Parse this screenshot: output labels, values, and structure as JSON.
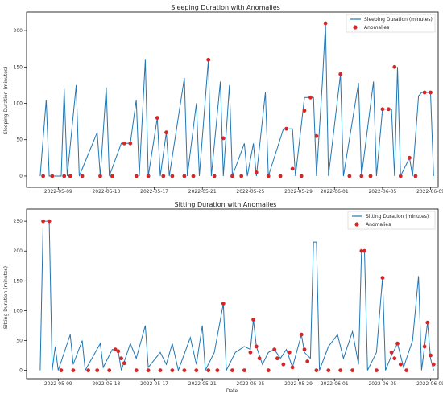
{
  "chart_data": [
    {
      "type": "line",
      "title": "Sleeping Duration with Anomalies",
      "xlabel": "",
      "ylabel": "Sleeping Duration (minutes)",
      "xlim": [
        "2022-05-06T12:00",
        "2022-06-09T12:00"
      ],
      "ylim": [
        -10,
        220
      ],
      "xticks": [
        "2022-05-09",
        "2022-05-13",
        "2022-05-17",
        "2022-05-21",
        "2022-05-25",
        "2022-05-29",
        "2022-06-01",
        "2022-06-05",
        "2022-06-09"
      ],
      "yticks": [
        0,
        50,
        100,
        150,
        200
      ],
      "grid": false,
      "legend_position": "top-right",
      "legend": [
        "Sleeping Duration (minutes)",
        "Anomalies"
      ],
      "colors": {
        "line": "#1f77b4",
        "anomaly": "#d62728"
      },
      "series_line": {
        "name": "Sleeping Duration (minutes)",
        "points": [
          [
            "2022-05-07T12:00",
            0
          ],
          [
            "2022-05-08T00:00",
            105
          ],
          [
            "2022-05-08T06:00",
            0
          ],
          [
            "2022-05-09T06:00",
            0
          ],
          [
            "2022-05-09T12:00",
            120
          ],
          [
            "2022-05-09T18:00",
            0
          ],
          [
            "2022-05-10T12:00",
            125
          ],
          [
            "2022-05-10T18:00",
            0
          ],
          [
            "2022-05-12T06:00",
            60
          ],
          [
            "2022-05-12T12:00",
            0
          ],
          [
            "2022-05-13T00:00",
            122
          ],
          [
            "2022-05-13T06:00",
            0
          ],
          [
            "2022-05-14T06:00",
            45
          ],
          [
            "2022-05-15T00:00",
            45
          ],
          [
            "2022-05-15T12:00",
            105
          ],
          [
            "2022-05-15T18:00",
            0
          ],
          [
            "2022-05-16T06:00",
            160
          ],
          [
            "2022-05-16T12:00",
            0
          ],
          [
            "2022-05-17T06:00",
            80
          ],
          [
            "2022-05-17T12:00",
            0
          ],
          [
            "2022-05-18T00:00",
            60
          ],
          [
            "2022-05-18T06:00",
            0
          ],
          [
            "2022-05-19T12:00",
            135
          ],
          [
            "2022-05-19T18:00",
            0
          ],
          [
            "2022-05-20T12:00",
            100
          ],
          [
            "2022-05-20T18:00",
            0
          ],
          [
            "2022-05-21T12:00",
            160
          ],
          [
            "2022-05-21T18:00",
            0
          ],
          [
            "2022-05-22T12:00",
            130
          ],
          [
            "2022-05-22T18:00",
            0
          ],
          [
            "2022-05-23T06:00",
            125
          ],
          [
            "2022-05-23T12:00",
            0
          ],
          [
            "2022-05-24T12:00",
            45
          ],
          [
            "2022-05-24T18:00",
            0
          ],
          [
            "2022-05-25T06:00",
            45
          ],
          [
            "2022-05-25T12:00",
            0
          ],
          [
            "2022-05-26T06:00",
            115
          ],
          [
            "2022-05-26T12:00",
            0
          ],
          [
            "2022-05-27T18:00",
            65
          ],
          [
            "2022-05-28T12:00",
            65
          ],
          [
            "2022-05-28T18:00",
            0
          ],
          [
            "2022-05-29T12:00",
            108
          ],
          [
            "2022-05-30T06:00",
            108
          ],
          [
            "2022-05-30T12:00",
            0
          ],
          [
            "2022-05-31T00:00",
            130
          ],
          [
            "2022-05-31T06:00",
            210
          ],
          [
            "2022-05-31T12:00",
            0
          ],
          [
            "2022-06-01T12:00",
            140
          ],
          [
            "2022-06-01T18:00",
            0
          ],
          [
            "2022-06-03T00:00",
            128
          ],
          [
            "2022-06-03T06:00",
            0
          ],
          [
            "2022-06-04T06:00",
            130
          ],
          [
            "2022-06-04T12:00",
            0
          ],
          [
            "2022-06-05T00:00",
            92
          ],
          [
            "2022-06-05T18:00",
            92
          ],
          [
            "2022-06-06T00:00",
            0
          ],
          [
            "2022-06-06T06:00",
            150
          ],
          [
            "2022-06-06T12:00",
            0
          ],
          [
            "2022-06-07T06:00",
            25
          ],
          [
            "2022-06-07T12:00",
            0
          ],
          [
            "2022-06-08T00:00",
            110
          ],
          [
            "2022-06-08T06:00",
            115
          ],
          [
            "2022-06-09T00:00",
            115
          ],
          [
            "2022-06-09T06:00",
            0
          ]
        ]
      },
      "series_anomalies": {
        "name": "Anomalies",
        "points": [
          [
            "2022-05-07T18:00",
            0
          ],
          [
            "2022-05-08T12:00",
            0
          ],
          [
            "2022-05-09T12:00",
            0
          ],
          [
            "2022-05-10T00:00",
            0
          ],
          [
            "2022-05-11T00:00",
            0
          ],
          [
            "2022-05-12T12:00",
            0
          ],
          [
            "2022-05-13T12:00",
            0
          ],
          [
            "2022-05-14T12:00",
            45
          ],
          [
            "2022-05-15T00:00",
            45
          ],
          [
            "2022-05-15T12:00",
            0
          ],
          [
            "2022-05-16T12:00",
            0
          ],
          [
            "2022-05-17T06:00",
            80
          ],
          [
            "2022-05-17T18:00",
            0
          ],
          [
            "2022-05-18T00:00",
            60
          ],
          [
            "2022-05-18T12:00",
            0
          ],
          [
            "2022-05-19T12:00",
            0
          ],
          [
            "2022-05-20T06:00",
            0
          ],
          [
            "2022-05-21T12:00",
            160
          ],
          [
            "2022-05-22T00:00",
            0
          ],
          [
            "2022-05-22T18:00",
            52
          ],
          [
            "2022-05-23T12:00",
            0
          ],
          [
            "2022-05-24T06:00",
            0
          ],
          [
            "2022-05-25T12:00",
            5
          ],
          [
            "2022-05-26T12:00",
            0
          ],
          [
            "2022-05-27T12:00",
            0
          ],
          [
            "2022-05-28T00:00",
            65
          ],
          [
            "2022-05-28T12:00",
            10
          ],
          [
            "2022-05-29T06:00",
            0
          ],
          [
            "2022-05-29T12:00",
            90
          ],
          [
            "2022-05-30T00:00",
            108
          ],
          [
            "2022-05-30T12:00",
            55
          ],
          [
            "2022-05-31T06:00",
            210
          ],
          [
            "2022-06-01T12:00",
            140
          ],
          [
            "2022-06-02T06:00",
            0
          ],
          [
            "2022-06-03T06:00",
            0
          ],
          [
            "2022-06-04T00:00",
            0
          ],
          [
            "2022-06-05T00:00",
            92
          ],
          [
            "2022-06-05T12:00",
            92
          ],
          [
            "2022-06-06T00:00",
            150
          ],
          [
            "2022-06-06T12:00",
            0
          ],
          [
            "2022-06-07T06:00",
            25
          ],
          [
            "2022-06-07T18:00",
            0
          ],
          [
            "2022-06-08T12:00",
            115
          ],
          [
            "2022-06-09T00:00",
            115
          ]
        ]
      }
    },
    {
      "type": "line",
      "title": "Sitting Duration with Anomalies",
      "xlabel": "Date",
      "ylabel": "Sitting Duration (minutes)",
      "xlim": [
        "2022-05-06T12:00",
        "2022-06-09T12:00"
      ],
      "ylim": [
        -10,
        265
      ],
      "xticks": [
        "2022-05-09",
        "2022-05-13",
        "2022-05-17",
        "2022-05-21",
        "2022-05-25",
        "2022-05-29",
        "2022-06-01",
        "2022-06-05",
        "2022-06-09"
      ],
      "yticks": [
        0,
        50,
        100,
        150,
        200,
        250
      ],
      "grid": false,
      "legend_position": "top-right",
      "legend": [
        "Sitting Duration (minutes)",
        "Anomalies"
      ],
      "colors": {
        "line": "#1f77b4",
        "anomaly": "#d62728"
      },
      "series_line": {
        "name": "Sitting Duration (minutes)",
        "points": [
          [
            "2022-05-07T12:00",
            0
          ],
          [
            "2022-05-07T18:00",
            250
          ],
          [
            "2022-05-08T06:00",
            250
          ],
          [
            "2022-05-08T12:00",
            0
          ],
          [
            "2022-05-08T18:00",
            40
          ],
          [
            "2022-05-09T00:00",
            0
          ],
          [
            "2022-05-10T00:00",
            60
          ],
          [
            "2022-05-10T06:00",
            10
          ],
          [
            "2022-05-11T00:00",
            50
          ],
          [
            "2022-05-11T06:00",
            0
          ],
          [
            "2022-05-12T12:00",
            45
          ],
          [
            "2022-05-12T18:00",
            5
          ],
          [
            "2022-05-13T12:00",
            35
          ],
          [
            "2022-05-14T00:00",
            32
          ],
          [
            "2022-05-14T06:00",
            0
          ],
          [
            "2022-05-15T00:00",
            45
          ],
          [
            "2022-05-15T12:00",
            20
          ],
          [
            "2022-05-16T06:00",
            75
          ],
          [
            "2022-05-16T12:00",
            5
          ],
          [
            "2022-05-17T12:00",
            30
          ],
          [
            "2022-05-18T00:00",
            10
          ],
          [
            "2022-05-18T12:00",
            45
          ],
          [
            "2022-05-19T00:00",
            0
          ],
          [
            "2022-05-20T00:00",
            55
          ],
          [
            "2022-05-20T12:00",
            10
          ],
          [
            "2022-05-21T00:00",
            75
          ],
          [
            "2022-05-21T06:00",
            0
          ],
          [
            "2022-05-22T00:00",
            30
          ],
          [
            "2022-05-22T18:00",
            112
          ],
          [
            "2022-05-23T00:00",
            0
          ],
          [
            "2022-05-23T18:00",
            30
          ],
          [
            "2022-05-24T12:00",
            40
          ],
          [
            "2022-05-25T00:00",
            35
          ],
          [
            "2022-05-25T06:00",
            85
          ],
          [
            "2022-05-25T12:00",
            40
          ],
          [
            "2022-05-26T00:00",
            10
          ],
          [
            "2022-05-26T12:00",
            30
          ],
          [
            "2022-05-27T00:00",
            35
          ],
          [
            "2022-05-27T12:00",
            20
          ],
          [
            "2022-05-28T00:00",
            35
          ],
          [
            "2022-05-28T12:00",
            5
          ],
          [
            "2022-05-29T06:00",
            60
          ],
          [
            "2022-05-29T12:00",
            30
          ],
          [
            "2022-05-30T00:00",
            20
          ],
          [
            "2022-05-30T06:00",
            215
          ],
          [
            "2022-05-30T12:00",
            215
          ],
          [
            "2022-05-30T18:00",
            0
          ],
          [
            "2022-05-31T12:00",
            40
          ],
          [
            "2022-06-01T06:00",
            60
          ],
          [
            "2022-06-01T18:00",
            20
          ],
          [
            "2022-06-02T12:00",
            65
          ],
          [
            "2022-06-03T00:00",
            10
          ],
          [
            "2022-06-03T06:00",
            200
          ],
          [
            "2022-06-03T12:00",
            200
          ],
          [
            "2022-06-03T18:00",
            0
          ],
          [
            "2022-06-04T12:00",
            30
          ],
          [
            "2022-06-05T00:00",
            155
          ],
          [
            "2022-06-05T06:00",
            0
          ],
          [
            "2022-06-05T18:00",
            25
          ],
          [
            "2022-06-06T06:00",
            45
          ],
          [
            "2022-06-06T18:00",
            5
          ],
          [
            "2022-06-07T12:00",
            50
          ],
          [
            "2022-06-08T00:00",
            158
          ],
          [
            "2022-06-08T06:00",
            0
          ],
          [
            "2022-06-08T18:00",
            80
          ],
          [
            "2022-06-09T00:00",
            20
          ],
          [
            "2022-06-09T06:00",
            0
          ]
        ]
      },
      "series_anomalies": {
        "name": "Anomalies",
        "points": [
          [
            "2022-05-07T18:00",
            250
          ],
          [
            "2022-05-08T06:00",
            250
          ],
          [
            "2022-05-09T06:00",
            0
          ],
          [
            "2022-05-10T06:00",
            0
          ],
          [
            "2022-05-11T12:00",
            0
          ],
          [
            "2022-05-12T06:00",
            0
          ],
          [
            "2022-05-13T06:00",
            0
          ],
          [
            "2022-05-13T18:00",
            35
          ],
          [
            "2022-05-14T00:00",
            32
          ],
          [
            "2022-05-14T06:00",
            20
          ],
          [
            "2022-05-14T12:00",
            12
          ],
          [
            "2022-05-15T12:00",
            0
          ],
          [
            "2022-05-16T12:00",
            0
          ],
          [
            "2022-05-17T12:00",
            0
          ],
          [
            "2022-05-18T12:00",
            0
          ],
          [
            "2022-05-19T12:00",
            0
          ],
          [
            "2022-05-20T12:00",
            0
          ],
          [
            "2022-05-21T12:00",
            0
          ],
          [
            "2022-05-22T06:00",
            0
          ],
          [
            "2022-05-22T18:00",
            112
          ],
          [
            "2022-05-23T12:00",
            0
          ],
          [
            "2022-05-24T12:00",
            0
          ],
          [
            "2022-05-25T00:00",
            30
          ],
          [
            "2022-05-25T06:00",
            85
          ],
          [
            "2022-05-25T12:00",
            40
          ],
          [
            "2022-05-25T18:00",
            20
          ],
          [
            "2022-05-26T12:00",
            0
          ],
          [
            "2022-05-27T00:00",
            35
          ],
          [
            "2022-05-27T06:00",
            20
          ],
          [
            "2022-05-27T18:00",
            10
          ],
          [
            "2022-05-28T06:00",
            30
          ],
          [
            "2022-05-28T12:00",
            5
          ],
          [
            "2022-05-29T06:00",
            60
          ],
          [
            "2022-05-29T12:00",
            35
          ],
          [
            "2022-05-29T18:00",
            15
          ],
          [
            "2022-05-30T12:00",
            0
          ],
          [
            "2022-05-31T12:00",
            0
          ],
          [
            "2022-06-01T12:00",
            0
          ],
          [
            "2022-06-02T12:00",
            0
          ],
          [
            "2022-06-03T06:00",
            200
          ],
          [
            "2022-06-03T12:00",
            200
          ],
          [
            "2022-06-04T12:00",
            0
          ],
          [
            "2022-06-05T00:00",
            155
          ],
          [
            "2022-06-05T18:00",
            30
          ],
          [
            "2022-06-06T00:00",
            20
          ],
          [
            "2022-06-06T06:00",
            45
          ],
          [
            "2022-06-06T12:00",
            10
          ],
          [
            "2022-06-07T00:00",
            0
          ],
          [
            "2022-06-08T12:00",
            40
          ],
          [
            "2022-06-08T18:00",
            80
          ],
          [
            "2022-06-09T00:00",
            25
          ],
          [
            "2022-06-09T06:00",
            10
          ]
        ]
      }
    }
  ]
}
